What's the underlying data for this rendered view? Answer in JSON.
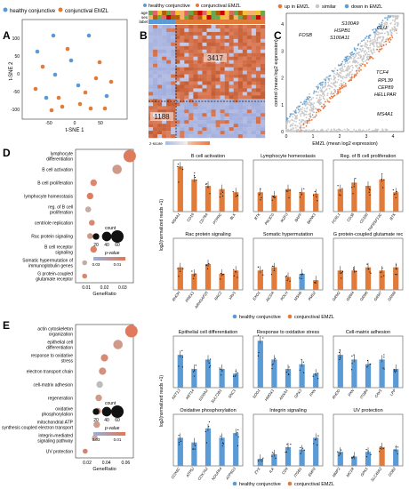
{
  "panel_letters": {
    "A": "A",
    "B": "B",
    "C": "C",
    "D": "D",
    "E": "E"
  },
  "colors": {
    "healthy": "#5b9bd5",
    "emzl": "#e07b39",
    "grey": "#b8b8b8",
    "up": "#e8773a",
    "down": "#5c9fd6",
    "similar": "#c8c8c8",
    "dot_low": "#bcbcbc",
    "dot_high": "#e0795a"
  },
  "panelA": {
    "legend": [
      "healthy conjunctive",
      "conjunctival EMZL"
    ],
    "xlabel": "t-SNE 1",
    "ylabel": "t-SNE 2",
    "xticks": [
      "-50",
      "0",
      "50"
    ],
    "yticks": [
      "100",
      "50",
      "0",
      "-50",
      "-100"
    ]
  },
  "panelB": {
    "legend": [
      "healthy conjunctive",
      "conjunctival EMZL"
    ],
    "row_labels": [
      "age",
      "sex",
      "label"
    ],
    "n_up": "3417",
    "n_down": "1188",
    "zscore_label": "z-score"
  },
  "panelC": {
    "legend": [
      "up in EMZL",
      "similar",
      "down in EMZL"
    ],
    "xlabel": "EMZL (mean log2 expression)",
    "ylabel": "control (mean log2 expression)",
    "xticks": [
      "0",
      "1",
      "2",
      "3",
      "4"
    ],
    "yticks": [
      "0",
      "1",
      "2",
      "3",
      "4"
    ],
    "genes_down": [
      "S100A9",
      "HSPB1",
      "S100A11",
      "FOSB",
      "CLU"
    ],
    "genes_up": [
      "TCF4",
      "RPL39",
      "CEP89",
      "HELLPAR",
      "MS4A1"
    ]
  },
  "panelD": {
    "terms": [
      "lymphocyte differentiation",
      "B cell activation",
      "B cell proliferation",
      "lymphocyte homeostasis",
      "reg. of B cell proliferation",
      "centriole replication",
      "Rac protein signaling",
      "B cell receptor signaling",
      "Somatic hypermutation of immunoglobulin genes",
      "G protein-coupled glutamate receptor"
    ],
    "xlabel": "GeneRatio",
    "xticks": [
      "0.01",
      "0.02",
      "0.03"
    ],
    "count_label": "count",
    "count_values": [
      "20",
      "40",
      "60"
    ],
    "pvalue_label": "p-value",
    "pvalue_ticks": [
      "0.03",
      "0.01"
    ],
    "dots": [
      {
        "ratio": 0.034,
        "count": 60,
        "p": 0.001
      },
      {
        "ratio": 0.027,
        "count": 40,
        "p": 0.02
      },
      {
        "ratio": 0.014,
        "count": 20,
        "p": 0.01
      },
      {
        "ratio": 0.012,
        "count": 20,
        "p": 0.003
      },
      {
        "ratio": 0.011,
        "count": 15,
        "p": 0.03
      },
      {
        "ratio": 0.013,
        "count": 15,
        "p": 0.01
      },
      {
        "ratio": 0.012,
        "count": 15,
        "p": 0.02
      },
      {
        "ratio": 0.014,
        "count": 20,
        "p": 0.005
      },
      {
        "ratio": 0.009,
        "count": 10,
        "p": 0.03
      },
      {
        "ratio": 0.009,
        "count": 10,
        "p": 0.008
      }
    ],
    "ylabel": "log2(normalized reads +1)",
    "subplots": [
      {
        "title": "B cell activation",
        "genes": [
          "MS4A1",
          "CD19",
          "CD79A",
          "PTPRC",
          "BLK"
        ],
        "heights": [
          7,
          5,
          4,
          3.5,
          3
        ],
        "colors": [
          "e",
          "e",
          "e",
          "e",
          "e"
        ]
      },
      {
        "title": "Lymphocyte homeostasis",
        "genes": [
          "BTK",
          "PIK3CD",
          "IKZF3",
          "BAFF",
          "BANK1"
        ],
        "heights": [
          3,
          2.5,
          3.5,
          3,
          2.8
        ],
        "colors": [
          "e",
          "e",
          "e",
          "e",
          "e"
        ]
      },
      {
        "title": "Reg. of B cell proliferation",
        "genes": [
          "FCRL1",
          "CD38",
          "CD180",
          "TNFRSF13C",
          "BTK"
        ],
        "heights": [
          3.5,
          4.5,
          4,
          5,
          3
        ],
        "colors": [
          "e",
          "e",
          "e",
          "e",
          "e"
        ]
      },
      {
        "title": "Rac protein signaling",
        "genes": [
          "RHOH",
          "PREX1",
          "ARHGAP25",
          "RAC2",
          "VAV1"
        ],
        "heights": [
          3.5,
          2.5,
          4,
          2.5,
          3
        ],
        "colors": [
          "e",
          "e",
          "e",
          "e",
          "e"
        ]
      },
      {
        "title": "Somatic hypermutation",
        "genes": [
          "EXO1",
          "AICDA",
          "POLH",
          "MSH6",
          "PMS2"
        ],
        "heights": [
          3,
          3.5,
          2,
          2.5,
          1.5
        ],
        "colors": [
          "e",
          "e",
          "e",
          "h",
          "e"
        ]
      },
      {
        "title": "G protein-coupled glutamate rec",
        "genes": [
          "GRM2",
          "GRM4",
          "GRM6",
          "GRM7",
          "GRM8"
        ],
        "heights": [
          3,
          3,
          3.5,
          3,
          3.5
        ],
        "colors": [
          "e",
          "e",
          "e",
          "e",
          "e"
        ]
      }
    ],
    "legend": [
      "healthy conjunctive",
      "conjunctival EMZL"
    ]
  },
  "panelE": {
    "terms": [
      "actin cytoskeleton organization",
      "epithelial cell differentiation",
      "response to oxidative stress",
      "electron transport chain",
      "cell-matrix adhesion",
      "regeneration",
      "oxidative phosphorylation",
      "mitochondrial ATP synthesis coupled electron transport",
      "integrin-mediated signaling pathway",
      "UV protection"
    ],
    "xlabel": "GeneRatio",
    "xticks": [
      "0.02",
      "0.04",
      "0.06"
    ],
    "count_label": "count",
    "count_values": [
      "20",
      "40",
      "60"
    ],
    "pvalue_label": "p-value",
    "pvalue_ticks": [
      "0.03",
      "0.01"
    ],
    "dots": [
      {
        "ratio": 0.066,
        "count": 60,
        "p": 0.001
      },
      {
        "ratio": 0.052,
        "count": 40,
        "p": 0.02
      },
      {
        "ratio": 0.038,
        "count": 25,
        "p": 0.01
      },
      {
        "ratio": 0.036,
        "count": 25,
        "p": 0.015
      },
      {
        "ratio": 0.033,
        "count": 20,
        "p": 0.04
      },
      {
        "ratio": 0.032,
        "count": 20,
        "p": 0.02
      },
      {
        "ratio": 0.031,
        "count": 20,
        "p": 0.01
      },
      {
        "ratio": 0.03,
        "count": 20,
        "p": 0.02
      },
      {
        "ratio": 0.028,
        "count": 15,
        "p": 0.03
      },
      {
        "ratio": 0.018,
        "count": 10,
        "p": 0.005
      }
    ],
    "ylabel": "log2(normalized reads +1)",
    "subplots": [
      {
        "title": "Epithelial cell differentiation",
        "genes": [
          "KRT13",
          "KRT14",
          "S100A2",
          "SULT2B1",
          "SNC1"
        ],
        "heights": [
          7,
          4,
          6,
          4,
          3
        ],
        "colors": [
          "h",
          "h",
          "h",
          "h",
          "h"
        ]
      },
      {
        "title": "Response to oxidative stress",
        "genes": [
          "SOD1",
          "HMOX1",
          "ANXA1",
          "GPX3",
          "PXN"
        ],
        "heights": [
          10,
          6,
          4,
          5,
          3
        ],
        "colors": [
          "h",
          "h",
          "h",
          "h",
          "h"
        ]
      },
      {
        "title": "Cell-matrix adhesion",
        "genes": [
          "RHOD",
          "PXN",
          "ITGB4",
          "CAV1",
          "LPP"
        ],
        "heights": [
          7,
          6,
          5,
          6,
          4
        ],
        "colors": [
          "h",
          "h",
          "h",
          "h",
          "h"
        ]
      },
      {
        "title": "Oxidative phosphorylation",
        "genes": [
          "COX6C",
          "ATP5J",
          "COX7A2",
          "NDUFA4",
          "ATP5G3"
        ],
        "heights": [
          6,
          5,
          8,
          6,
          7
        ],
        "colors": [
          "h",
          "h",
          "h",
          "h",
          "h"
        ]
      },
      {
        "title": "Integrin signaling",
        "genes": [
          "ZYX",
          "ILK",
          "CD9",
          "ITGB1",
          "EMP2"
        ],
        "heights": [
          1.5,
          2.5,
          4,
          3.5,
          6
        ],
        "colors": [
          "h",
          "h",
          "h",
          "h",
          "h"
        ]
      },
      {
        "title": "UV protection",
        "genes": [
          "MMP2",
          "MC1R",
          "GPX1",
          "SLC45A2",
          "DDB2"
        ],
        "heights": [
          3,
          2,
          3,
          4,
          3.5
        ],
        "colors": [
          "h",
          "h",
          "h",
          "e",
          "h"
        ]
      }
    ],
    "legend": [
      "healthy conjunctive",
      "conjunctival EMZL"
    ]
  }
}
